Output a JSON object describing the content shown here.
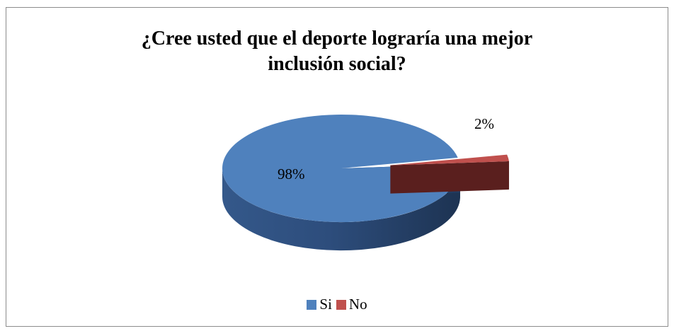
{
  "chart_data": {
    "type": "pie",
    "title_lines": [
      "¿Cree usted que el deporte lograría una mejor",
      "inclusión social?"
    ],
    "categories": [
      "Si",
      "No"
    ],
    "values": [
      98,
      2
    ],
    "data_labels": [
      "98%",
      "2%"
    ],
    "colors": [
      "#4f81bd",
      "#c0504d"
    ],
    "legend_position": "bottom",
    "style": "3d-pie-exploded"
  }
}
